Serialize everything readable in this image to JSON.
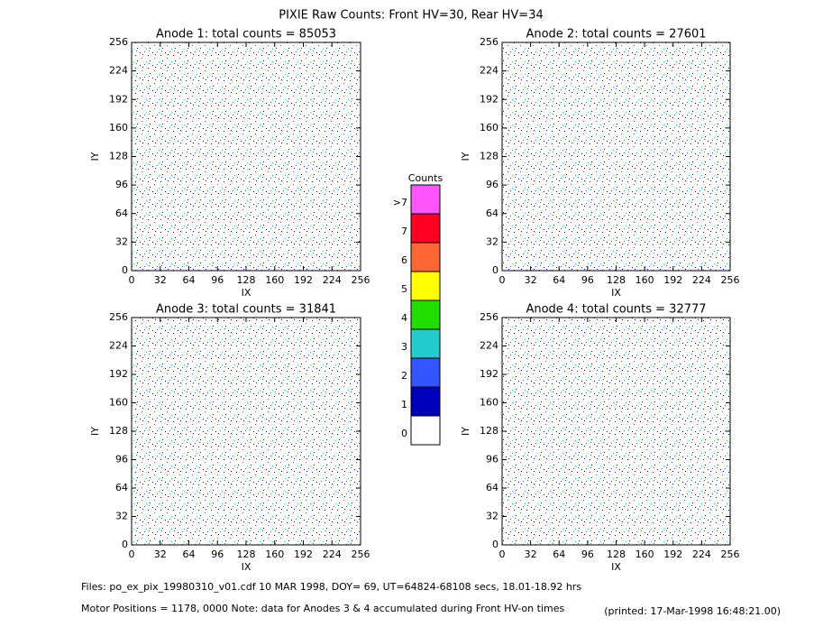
{
  "title": "PIXIE Raw Counts:  Front HV=30, Rear HV=34",
  "chart_data": [
    {
      "type": "heatmap",
      "title": "Anode 1: total counts = 85053",
      "xlabel": "IX",
      "ylabel": "IY",
      "xlim": [
        0,
        256
      ],
      "ylim": [
        0,
        256
      ],
      "xticks": [
        0,
        32,
        64,
        96,
        128,
        160,
        192,
        224,
        256
      ],
      "yticks": [
        0,
        32,
        64,
        96,
        128,
        160,
        192,
        224,
        256
      ]
    },
    {
      "type": "heatmap",
      "title": "Anode 2: total counts = 27601",
      "xlabel": "IX",
      "ylabel": "IY",
      "xlim": [
        0,
        256
      ],
      "ylim": [
        0,
        256
      ],
      "xticks": [
        0,
        32,
        64,
        96,
        128,
        160,
        192,
        224,
        256
      ],
      "yticks": [
        0,
        32,
        64,
        96,
        128,
        160,
        192,
        224,
        256
      ]
    },
    {
      "type": "heatmap",
      "title": "Anode 3: total counts = 31841",
      "xlabel": "IX",
      "ylabel": "IY",
      "xlim": [
        0,
        256
      ],
      "ylim": [
        0,
        256
      ],
      "xticks": [
        0,
        32,
        64,
        96,
        128,
        160,
        192,
        224,
        256
      ],
      "yticks": [
        0,
        32,
        64,
        96,
        128,
        160,
        192,
        224,
        256
      ]
    },
    {
      "type": "heatmap",
      "title": "Anode 4: total counts = 32777",
      "xlabel": "IX",
      "ylabel": "IY",
      "xlim": [
        0,
        256
      ],
      "ylim": [
        0,
        256
      ],
      "xticks": [
        0,
        32,
        64,
        96,
        128,
        160,
        192,
        224,
        256
      ],
      "yticks": [
        0,
        32,
        64,
        96,
        128,
        160,
        192,
        224,
        256
      ]
    }
  ],
  "colorbar": {
    "title": "Counts",
    "levels": [
      {
        "label": ">7",
        "color": "#ff55ff"
      },
      {
        "label": "7",
        "color": "#ff0022"
      },
      {
        "label": "6",
        "color": "#ff6633"
      },
      {
        "label": "5",
        "color": "#ffff00"
      },
      {
        "label": "4",
        "color": "#22dd00"
      },
      {
        "label": "3",
        "color": "#22cccc"
      },
      {
        "label": "2",
        "color": "#3355ff"
      },
      {
        "label": "1",
        "color": "#0000bb"
      },
      {
        "label": "0",
        "color": "#ffffff"
      }
    ]
  },
  "footer": {
    "files": "Files: po_ex_pix_19980310_v01.cdf     10 MAR 1998, DOY= 69, UT=64824-68108 secs, 18.01-18.92 hrs",
    "motor": "Motor Positions = 1178, 0000    Note: data for Anodes 3 & 4 accumulated during Front HV-on times",
    "printed": "(printed: 17-Mar-1998 16:48:21.00)"
  }
}
